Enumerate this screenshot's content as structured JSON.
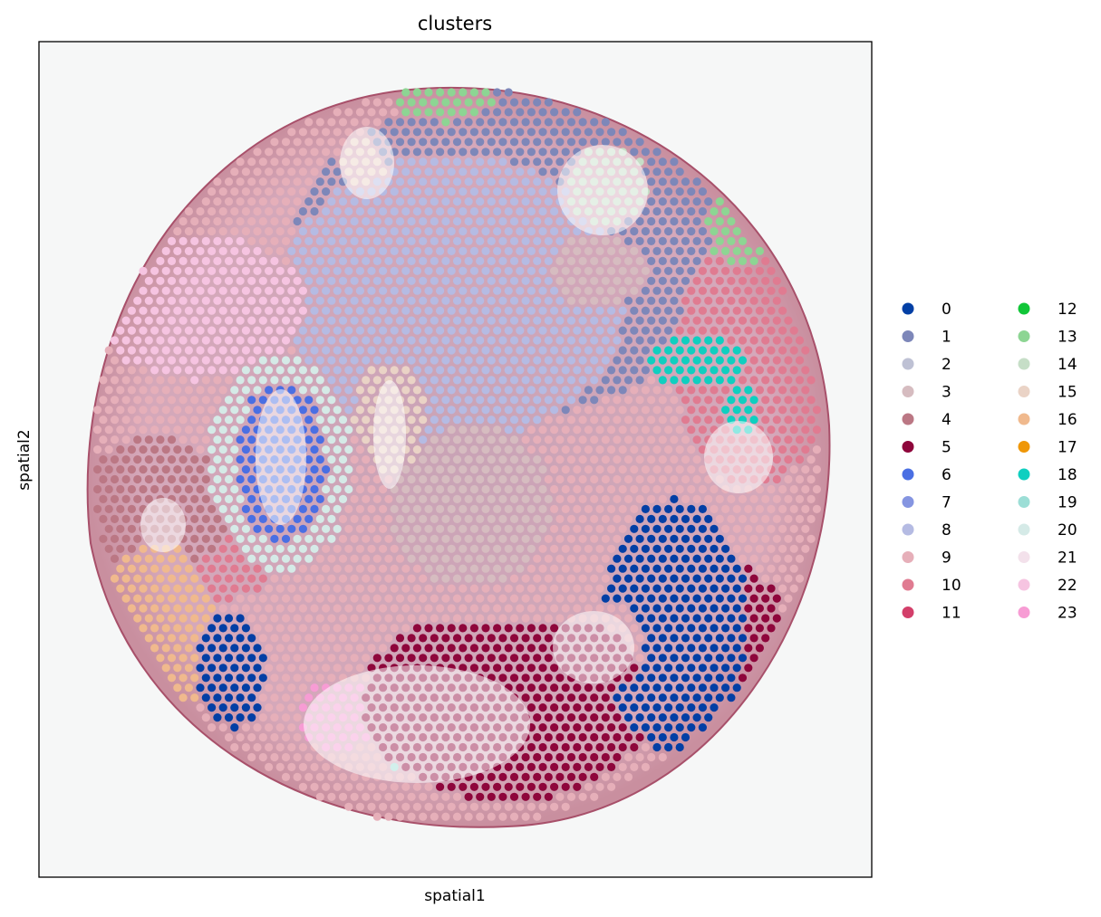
{
  "chart_data": {
    "type": "scatter",
    "title": "clusters",
    "xlabel": "spatial1",
    "ylabel": "spatial2",
    "grid": false,
    "ticks": false,
    "legend_placement": "right",
    "legend_columns": 2,
    "background": "H&E tissue section image, circular core",
    "series": [
      {
        "name": "0",
        "color": "#023fa5"
      },
      {
        "name": "1",
        "color": "#7d87b9"
      },
      {
        "name": "2",
        "color": "#bec1d4"
      },
      {
        "name": "3",
        "color": "#d6bcc0"
      },
      {
        "name": "4",
        "color": "#bb7784"
      },
      {
        "name": "5",
        "color": "#8e063b"
      },
      {
        "name": "6",
        "color": "#4a6fe3"
      },
      {
        "name": "7",
        "color": "#8595e1"
      },
      {
        "name": "8",
        "color": "#b5bbe3"
      },
      {
        "name": "9",
        "color": "#e6afb9"
      },
      {
        "name": "10",
        "color": "#e07b91"
      },
      {
        "name": "11",
        "color": "#d33f6a"
      },
      {
        "name": "12",
        "color": "#11c638"
      },
      {
        "name": "13",
        "color": "#8dd593"
      },
      {
        "name": "14",
        "color": "#c6dec7"
      },
      {
        "name": "15",
        "color": "#ead3c6"
      },
      {
        "name": "16",
        "color": "#f0b98d"
      },
      {
        "name": "17",
        "color": "#ef9708"
      },
      {
        "name": "18",
        "color": "#0fcfc0"
      },
      {
        "name": "19",
        "color": "#9cded6"
      },
      {
        "name": "20",
        "color": "#d5eae7"
      },
      {
        "name": "21",
        "color": "#f3e1eb"
      },
      {
        "name": "22",
        "color": "#f6c4e1"
      },
      {
        "name": "23",
        "color": "#f79cd4"
      }
    ]
  }
}
